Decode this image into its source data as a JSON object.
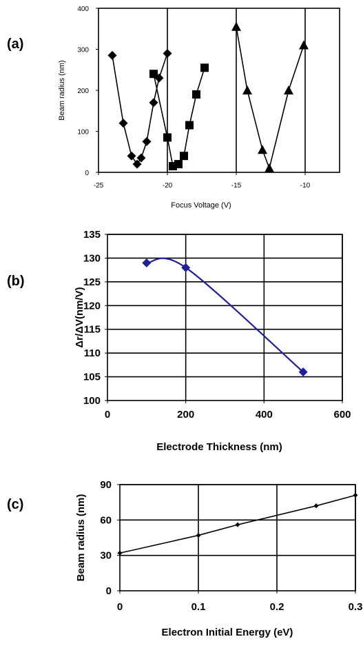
{
  "chart_data": [
    {
      "panel": "(a)",
      "type": "line",
      "xlabel": "Focus Voltage (V)",
      "ylabel": "Beam radius (nm)",
      "xlim": [
        -25,
        -7.5
      ],
      "ylim": [
        0,
        400
      ],
      "xticks": [
        -25,
        -20,
        -15,
        -10
      ],
      "yticks": [
        0,
        100,
        200,
        300,
        400
      ],
      "xtick_labels": [
        "-25",
        "-20",
        "-15",
        "-10"
      ],
      "ytick_labels": [
        "0",
        "100",
        "200",
        "300",
        "400"
      ],
      "grid": "vertical",
      "marker_color": "#000000",
      "series": [
        {
          "marker": "diamond",
          "x": [
            -24,
            -23.2,
            -22.6,
            -22.2,
            -21.9,
            -21.5,
            -21,
            -20.6,
            -20
          ],
          "y": [
            285,
            120,
            40,
            20,
            35,
            75,
            170,
            230,
            290
          ]
        },
        {
          "marker": "square",
          "x": [
            -21,
            -20,
            -19.6,
            -19.2,
            -18.8,
            -18.4,
            -17.9,
            -17.3
          ],
          "y": [
            240,
            85,
            15,
            20,
            40,
            115,
            190,
            255
          ]
        },
        {
          "marker": "triangle",
          "x": [
            -15,
            -14.2,
            -13.1,
            -12.6,
            -11.2,
            -10.1
          ],
          "y": [
            355,
            200,
            55,
            10,
            200,
            310
          ]
        }
      ]
    },
    {
      "panel": "(b)",
      "type": "line",
      "xlabel": "Electrode Thickness (nm)",
      "ylabel": "Δr/ΔV(nm/V)",
      "xlim": [
        0,
        600
      ],
      "ylim": [
        100,
        135
      ],
      "xticks": [
        0,
        200,
        400,
        600
      ],
      "yticks": [
        100,
        105,
        110,
        115,
        120,
        125,
        130,
        135
      ],
      "xtick_labels": [
        "0",
        "200",
        "400",
        "600"
      ],
      "ytick_labels": [
        "100",
        "105",
        "110",
        "115",
        "120",
        "125",
        "130",
        "135"
      ],
      "grid": "both",
      "line_color": "#1f1f9c",
      "series": [
        {
          "marker": "diamond",
          "x": [
            100,
            200,
            500
          ],
          "y": [
            129,
            128,
            106
          ]
        }
      ]
    },
    {
      "panel": "(c)",
      "type": "line",
      "xlabel": "Electron Initial Energy (eV)",
      "ylabel": "Beam radius (nm)",
      "xlim": [
        0,
        0.3
      ],
      "ylim": [
        0,
        90
      ],
      "xticks": [
        0,
        0.1,
        0.2,
        0.3
      ],
      "yticks": [
        0,
        30,
        60,
        90
      ],
      "xtick_labels": [
        "0",
        "0.1",
        "0.2",
        "0.3"
      ],
      "ytick_labels": [
        "0",
        "30",
        "60",
        "90"
      ],
      "grid": "both",
      "line_color": "#000000",
      "series": [
        {
          "marker": "small-diamond",
          "x": [
            0,
            0.1,
            0.15,
            0.25,
            0.3
          ],
          "y": [
            32,
            47,
            56,
            72,
            81
          ]
        }
      ]
    }
  ]
}
